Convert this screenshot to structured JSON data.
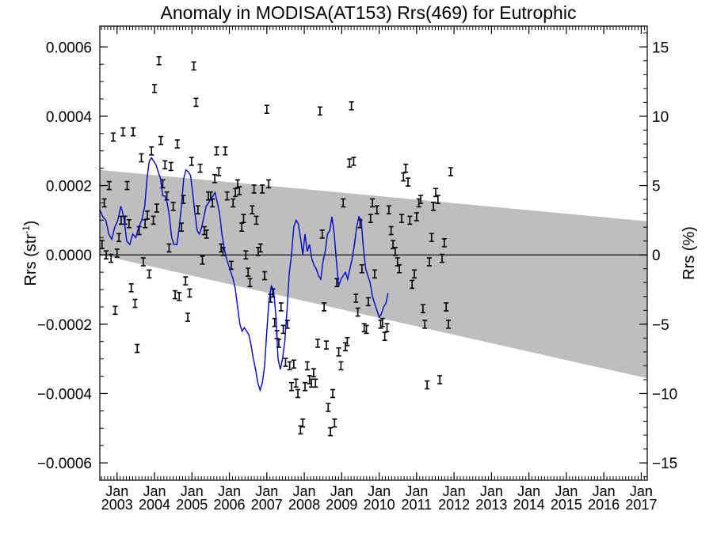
{
  "chart_data": {
    "type": "scatter",
    "title": "Anomaly in MODISA(AT153) Rrs(469) for Eutrophic",
    "ylabel_left": "Rrs (str",
    "ylabel_left_sup": "-1",
    "ylabel_left_end": ")",
    "ylabel_right": "Rrs (%)",
    "ylim": [
      -0.00065,
      0.00066
    ],
    "ylim_right": [
      -16.25,
      16.5
    ],
    "xlim": [
      2002.54,
      2017.16
    ],
    "y_ticks": [
      {
        "v": 0.0006,
        "label": "0.0006"
      },
      {
        "v": 0.0004,
        "label": "0.0004"
      },
      {
        "v": 0.0002,
        "label": "0.0002"
      },
      {
        "v": 0.0,
        "label": "0.0000"
      },
      {
        "v": -0.0002,
        "label": "−0.0002"
      },
      {
        "v": -0.0004,
        "label": "−0.0004"
      },
      {
        "v": -0.0006,
        "label": "−0.0006"
      }
    ],
    "y_ticks_right": [
      {
        "v": 15,
        "label": "15"
      },
      {
        "v": 10,
        "label": "10"
      },
      {
        "v": 5,
        "label": "5"
      },
      {
        "v": 0,
        "label": "0"
      },
      {
        "v": -5,
        "label": "−5"
      },
      {
        "v": -10,
        "label": "−10"
      },
      {
        "v": -15,
        "label": "−15"
      }
    ],
    "x_ticks": [
      {
        "v": 2003.0,
        "month": "Jan",
        "year": "2003"
      },
      {
        "v": 2004.0,
        "month": "Jan",
        "year": "2004"
      },
      {
        "v": 2005.0,
        "month": "Jan",
        "year": "2005"
      },
      {
        "v": 2006.0,
        "month": "Jan",
        "year": "2006"
      },
      {
        "v": 2007.0,
        "month": "Jan",
        "year": "2007"
      },
      {
        "v": 2008.0,
        "month": "Jan",
        "year": "2008"
      },
      {
        "v": 2009.0,
        "month": "Jan",
        "year": "2009"
      },
      {
        "v": 2010.0,
        "month": "Jan",
        "year": "2010"
      },
      {
        "v": 2011.0,
        "month": "Jan",
        "year": "2011"
      },
      {
        "v": 2012.0,
        "month": "Jan",
        "year": "2012"
      },
      {
        "v": 2013.0,
        "month": "Jan",
        "year": "2013"
      },
      {
        "v": 2014.0,
        "month": "Jan",
        "year": "2014"
      },
      {
        "v": 2015.0,
        "month": "Jan",
        "year": "2015"
      },
      {
        "v": 2016.0,
        "month": "Jan",
        "year": "2016"
      },
      {
        "v": 2017.0,
        "month": "Jan",
        "year": "2017"
      }
    ],
    "band": {
      "x": [
        2002.54,
        2017.16
      ],
      "upper": [
        0.000245,
        9.7e-05
      ],
      "lower": [
        0.0,
        -0.000356
      ]
    },
    "zero_line": 0.0,
    "colors": {
      "points": "#000000",
      "line": "#0000cc",
      "band": "#bebebe"
    },
    "points": [
      [
        2002.6,
        3e-05
      ],
      [
        2002.66,
        0.00015
      ],
      [
        2002.71,
        0.0
      ],
      [
        2002.79,
        0.0002
      ],
      [
        2002.84,
        -1e-05
      ],
      [
        2002.9,
        0.00034
      ],
      [
        2002.95,
        -0.00016
      ],
      [
        2003.0,
        5e-06
      ],
      [
        2003.05,
        5e-05
      ],
      [
        2003.11,
        0.0001
      ],
      [
        2003.16,
        0.000355
      ],
      [
        2003.21,
        0.0001
      ],
      [
        2003.27,
        0.0002
      ],
      [
        2003.32,
        9e-05
      ],
      [
        2003.38,
        -9.5e-05
      ],
      [
        2003.43,
        0.000355
      ],
      [
        2003.48,
        -0.00014
      ],
      [
        2003.54,
        -0.00027
      ],
      [
        2003.59,
        7e-05
      ],
      [
        2003.65,
        0.00028
      ],
      [
        2003.7,
        -2e-05
      ],
      [
        2003.75,
        9e-05
      ],
      [
        2003.81,
        0.000115
      ],
      [
        2003.86,
        -5.5e-05
      ],
      [
        2003.92,
        0.0003
      ],
      [
        2003.97,
        0.0001
      ],
      [
        2004.0,
        0.00048
      ],
      [
        2004.06,
        0.000135
      ],
      [
        2004.12,
        0.00056
      ],
      [
        2004.17,
        0.00033
      ],
      [
        2004.22,
        0.000205
      ],
      [
        2004.28,
        0.00026
      ],
      [
        2004.33,
        0.00017
      ],
      [
        2004.39,
        2e-05
      ],
      [
        2004.44,
        0.000255
      ],
      [
        2004.5,
        0.00014
      ],
      [
        2004.55,
        -0.000115
      ],
      [
        2004.61,
        0.00032
      ],
      [
        2004.66,
        -0.00012
      ],
      [
        2004.72,
        8e-05
      ],
      [
        2004.77,
        0.00016
      ],
      [
        2004.83,
        -7.5e-05
      ],
      [
        2004.89,
        -0.00018
      ],
      [
        2004.94,
        -0.00011
      ],
      [
        2004.99,
        0.00027
      ],
      [
        2005.05,
        0.000545
      ],
      [
        2005.11,
        0.00044
      ],
      [
        2005.16,
        0.00013
      ],
      [
        2005.22,
        0.00025
      ],
      [
        2005.28,
        -1.5e-05
      ],
      [
        2005.33,
        7e-05
      ],
      [
        2005.39,
        6e-05
      ],
      [
        2005.44,
        0.00017
      ],
      [
        2005.5,
        0.00017
      ],
      [
        2005.55,
        0.00015
      ],
      [
        2005.61,
        0.00022
      ],
      [
        2005.66,
        0.0003
      ],
      [
        2005.72,
        0.00024
      ],
      [
        2005.78,
        2e-05
      ],
      [
        2005.83,
        1e-05
      ],
      [
        2005.89,
        0.0003
      ],
      [
        2005.94,
        0.00017
      ],
      [
        2006.05,
        -3e-05
      ],
      [
        2006.1,
        0.00015
      ],
      [
        2006.16,
        0.00018
      ],
      [
        2006.22,
        0.000205
      ],
      [
        2006.27,
        0.000185
      ],
      [
        2006.33,
        8e-05
      ],
      [
        2006.38,
        0.000105
      ],
      [
        2006.44,
        0.0
      ],
      [
        2006.5,
        -5e-05
      ],
      [
        2006.55,
        -8e-05
      ],
      [
        2006.61,
        0.00013
      ],
      [
        2006.66,
        0.00019
      ],
      [
        2006.72,
        0.0001
      ],
      [
        2006.77,
        1e-05
      ],
      [
        2006.83,
        2e-05
      ],
      [
        2006.88,
        0.00019
      ],
      [
        2006.94,
        -6e-05
      ],
      [
        2007.0,
        0.00042
      ],
      [
        2007.05,
        0.000205
      ],
      [
        2007.1,
        -0.000125
      ],
      [
        2007.16,
        -0.00011
      ],
      [
        2007.21,
        -0.000195
      ],
      [
        2007.27,
        -0.00023
      ],
      [
        2007.32,
        -0.000255
      ],
      [
        2007.38,
        -0.00015
      ],
      [
        2007.44,
        -0.000215
      ],
      [
        2007.5,
        -0.00031
      ],
      [
        2007.55,
        -0.0002
      ],
      [
        2007.61,
        -0.00032
      ],
      [
        2007.66,
        -0.00038
      ],
      [
        2007.72,
        -0.000315
      ],
      [
        2007.78,
        -0.00037
      ],
      [
        2007.83,
        -0.0004
      ],
      [
        2007.9,
        -0.000505
      ],
      [
        2007.96,
        -0.000485
      ],
      [
        2008.02,
        -0.00038
      ],
      [
        2008.08,
        -0.00032
      ],
      [
        2008.14,
        -0.00036
      ],
      [
        2008.19,
        -0.00037
      ],
      [
        2008.25,
        -0.00034
      ],
      [
        2008.3,
        -0.00037
      ],
      [
        2008.36,
        -0.000255
      ],
      [
        2008.42,
        0.000415
      ],
      [
        2008.48,
        6e-05
      ],
      [
        2008.53,
        -0.00015
      ],
      [
        2008.59,
        -0.00026
      ],
      [
        2008.64,
        -0.00044
      ],
      [
        2008.7,
        -0.00051
      ],
      [
        2008.76,
        -0.0004
      ],
      [
        2008.81,
        -0.000485
      ],
      [
        2008.87,
        -8e-05
      ],
      [
        2008.92,
        -0.00028
      ],
      [
        2008.98,
        -0.00032
      ],
      [
        2009.04,
        0.00015
      ],
      [
        2009.1,
        -0.000265
      ],
      [
        2009.15,
        -0.00025
      ],
      [
        2009.21,
        0.000265
      ],
      [
        2009.26,
        0.00043
      ],
      [
        2009.32,
        0.00027
      ],
      [
        2009.38,
        -0.000125
      ],
      [
        2009.43,
        -0.000165
      ],
      [
        2009.49,
        9e-05
      ],
      [
        2009.54,
        -4e-05
      ],
      [
        2009.6,
        -0.00021
      ],
      [
        2009.66,
        -0.000215
      ],
      [
        2009.71,
        -0.000135
      ],
      [
        2009.77,
        0.000105
      ],
      [
        2009.82,
        0.00015
      ],
      [
        2009.88,
        -5.5e-05
      ],
      [
        2009.94,
        0.00013
      ],
      [
        2010.04,
        -0.0002
      ],
      [
        2010.09,
        -0.000195
      ],
      [
        2010.15,
        -0.000235
      ],
      [
        2010.21,
        -0.00021
      ],
      [
        2010.26,
        0.00013
      ],
      [
        2010.32,
        7e-05
      ],
      [
        2010.37,
        3e-05
      ],
      [
        2010.43,
        1e-05
      ],
      [
        2010.49,
        -2e-05
      ],
      [
        2010.54,
        -4e-05
      ],
      [
        2010.6,
        0.000105
      ],
      [
        2010.65,
        0.000225
      ],
      [
        2010.71,
        0.00025
      ],
      [
        2010.77,
        0.00021
      ],
      [
        2010.82,
        0.0001
      ],
      [
        2010.88,
        -8.5e-05
      ],
      [
        2010.94,
        -5.5e-05
      ],
      [
        2011.0,
        0.00011
      ],
      [
        2011.06,
        0.00015
      ],
      [
        2011.11,
        0.00016
      ],
      [
        2011.17,
        -0.000155
      ],
      [
        2011.22,
        -0.0002
      ],
      [
        2011.28,
        -0.000375
      ],
      [
        2011.34,
        -2e-05
      ],
      [
        2011.4,
        5e-05
      ],
      [
        2011.45,
        0.00014
      ],
      [
        2011.51,
        0.00018
      ],
      [
        2011.57,
        0.00016
      ],
      [
        2011.62,
        -0.00036
      ],
      [
        2011.68,
        -1e-05
      ],
      [
        2011.74,
        3.5e-05
      ],
      [
        2011.79,
        -0.00015
      ],
      [
        2011.85,
        -0.0002
      ],
      [
        2011.91,
        0.00024
      ]
    ],
    "blue_line": [
      [
        2002.54,
        0.00013
      ],
      [
        2002.62,
        0.00011
      ],
      [
        2002.7,
        0.0001
      ],
      [
        2002.78,
        6e-05
      ],
      [
        2002.86,
        4.5e-05
      ],
      [
        2002.94,
        8e-05
      ],
      [
        2003.02,
        0.0001
      ],
      [
        2003.1,
        0.00014
      ],
      [
        2003.18,
        0.00011
      ],
      [
        2003.26,
        4e-05
      ],
      [
        2003.34,
        3e-05
      ],
      [
        2003.42,
        6e-05
      ],
      [
        2003.5,
        5e-05
      ],
      [
        2003.58,
        8e-05
      ],
      [
        2003.66,
        0.0001
      ],
      [
        2003.74,
        0.00014
      ],
      [
        2003.8,
        0.00022
      ],
      [
        2003.86,
        0.00027
      ],
      [
        2003.92,
        0.00028
      ],
      [
        2003.98,
        0.00027
      ],
      [
        2004.04,
        0.00026
      ],
      [
        2004.1,
        0.00024
      ],
      [
        2004.16,
        0.00022
      ],
      [
        2004.22,
        0.00017
      ],
      [
        2004.28,
        0.00017
      ],
      [
        2004.34,
        0.00015
      ],
      [
        2004.4,
        0.00011
      ],
      [
        2004.46,
        5e-05
      ],
      [
        2004.52,
        3e-05
      ],
      [
        2004.6,
        3e-05
      ],
      [
        2004.66,
        8e-05
      ],
      [
        2004.72,
        0.00014
      ],
      [
        2004.78,
        0.00022
      ],
      [
        2004.84,
        0.000245
      ],
      [
        2004.9,
        0.00024
      ],
      [
        2004.96,
        0.00023
      ],
      [
        2005.02,
        0.00018
      ],
      [
        2005.08,
        0.00012
      ],
      [
        2005.14,
        7e-05
      ],
      [
        2005.2,
        6e-05
      ],
      [
        2005.26,
        8e-05
      ],
      [
        2005.32,
        0.00011
      ],
      [
        2005.38,
        0.00014
      ],
      [
        2005.44,
        0.00015
      ],
      [
        2005.5,
        0.00016
      ],
      [
        2005.56,
        0.00017
      ],
      [
        2005.62,
        0.00018
      ],
      [
        2005.68,
        0.00015
      ],
      [
        2005.74,
        0.00012
      ],
      [
        2005.8,
        6e-05
      ],
      [
        2005.86,
        2e-05
      ],
      [
        2005.92,
        -1e-05
      ],
      [
        2005.98,
        -3e-05
      ],
      [
        2006.04,
        -5e-05
      ],
      [
        2006.1,
        -7e-05
      ],
      [
        2006.16,
        -0.0001
      ],
      [
        2006.22,
        -0.00015
      ],
      [
        2006.28,
        -0.0002
      ],
      [
        2006.34,
        -0.00022
      ],
      [
        2006.4,
        -0.00021
      ],
      [
        2006.46,
        -0.00022
      ],
      [
        2006.52,
        -0.00023
      ],
      [
        2006.58,
        -0.00026
      ],
      [
        2006.64,
        -0.0003
      ],
      [
        2006.7,
        -0.00033
      ],
      [
        2006.76,
        -0.00037
      ],
      [
        2006.82,
        -0.00039
      ],
      [
        2006.88,
        -0.00037
      ],
      [
        2006.94,
        -0.00032
      ],
      [
        2007.0,
        -0.00022
      ],
      [
        2007.06,
        -0.00013
      ],
      [
        2007.12,
        -9e-05
      ],
      [
        2007.18,
        -0.0001
      ],
      [
        2007.24,
        -0.00017
      ],
      [
        2007.3,
        -0.0003
      ],
      [
        2007.36,
        -0.00033
      ],
      [
        2007.42,
        -0.0003
      ],
      [
        2007.48,
        -0.00025
      ],
      [
        2007.54,
        -0.00016
      ],
      [
        2007.6,
        -5e-05
      ],
      [
        2007.66,
        0.0
      ],
      [
        2007.72,
        8e-05
      ],
      [
        2007.78,
        0.0001
      ],
      [
        2007.84,
        9e-05
      ],
      [
        2007.9,
        5e-05
      ],
      [
        2007.96,
        0.0
      ],
      [
        2008.02,
        6e-05
      ],
      [
        2008.08,
        1e-05
      ],
      [
        2008.14,
        3e-05
      ],
      [
        2008.2,
        -1e-05
      ],
      [
        2008.26,
        -3e-05
      ],
      [
        2008.32,
        -4e-05
      ],
      [
        2008.38,
        -6e-05
      ],
      [
        2008.44,
        -7e-05
      ],
      [
        2008.5,
        -2e-05
      ],
      [
        2008.56,
        1e-05
      ],
      [
        2008.62,
        6e-05
      ],
      [
        2008.68,
        7e-05
      ],
      [
        2008.74,
        0.00011
      ],
      [
        2008.8,
        6e-05
      ],
      [
        2008.86,
        -2e-05
      ],
      [
        2008.92,
        -9e-05
      ],
      [
        2008.98,
        -7e-05
      ],
      [
        2009.04,
        -6e-05
      ],
      [
        2009.1,
        -5e-05
      ],
      [
        2009.16,
        -7e-05
      ],
      [
        2009.22,
        -4e-05
      ],
      [
        2009.28,
        -1e-05
      ],
      [
        2009.34,
        3e-05
      ],
      [
        2009.4,
        8e-05
      ],
      [
        2009.46,
        0.00011
      ],
      [
        2009.52,
        0.0001
      ],
      [
        2009.58,
        2e-05
      ],
      [
        2009.64,
        -4e-05
      ],
      [
        2009.7,
        -6e-05
      ],
      [
        2009.76,
        -8e-05
      ],
      [
        2009.82,
        -0.00012
      ],
      [
        2009.88,
        -0.00014
      ],
      [
        2009.94,
        -0.00016
      ],
      [
        2010.0,
        -0.00018
      ],
      [
        2010.06,
        -0.00017
      ],
      [
        2010.12,
        -0.00015
      ],
      [
        2010.18,
        -0.00014
      ],
      [
        2010.24,
        -0.00011
      ]
    ]
  }
}
